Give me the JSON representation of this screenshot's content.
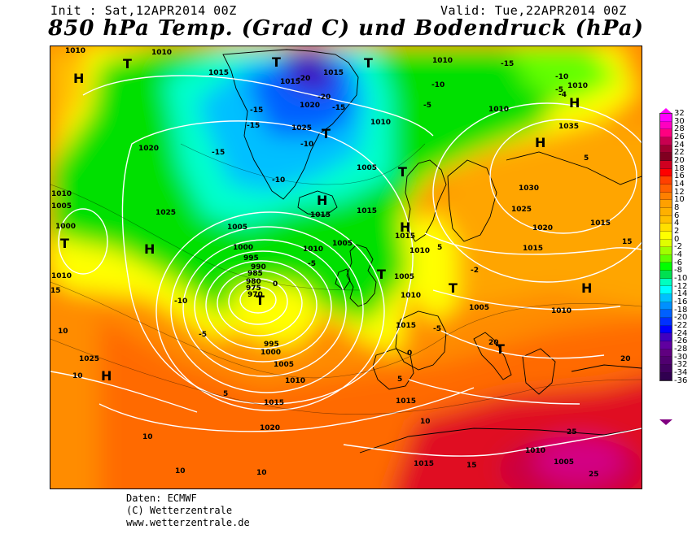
{
  "header": {
    "init_text": "Init : Sat,12APR2014 00Z",
    "valid_text": "Valid: Tue,22APR2014 00Z",
    "title": "850 hPa Temp. (Grad C) und Bodendruck (hPa)"
  },
  "credits": {
    "line1": "Daten: ECMWF",
    "line2": "(C) Wetterzentrale",
    "line3": "www.wetterzentrale.de"
  },
  "colors": {
    "deep_purple": "#800080",
    "purple": "#a000a0",
    "magenta": "#ff00ff",
    "pink": "#ff40a0",
    "red": "#e01020",
    "red_orange": "#f04010",
    "orange_dark": "#ff6a00",
    "orange": "#ff8c00",
    "light_orange": "#ffa500",
    "amber": "#ffc000",
    "yellow": "#ffff00",
    "yellow_green": "#c8ff00",
    "green_light": "#64ff00",
    "green": "#00e000",
    "cyan": "#00ffcc",
    "light_blue": "#00c0ff",
    "blue": "#0080ff",
    "dark_blue": "#0040ff",
    "coastline": "#000000",
    "isobar": "#ffffff"
  },
  "legend": {
    "ticks": [
      "32",
      "30",
      "28",
      "26",
      "24",
      "22",
      "20",
      "18",
      "16",
      "14",
      "12",
      "10",
      "8",
      "6",
      "4",
      "2",
      "0",
      "-2",
      "-4",
      "-6",
      "-8",
      "-10",
      "-12",
      "-14",
      "-16",
      "-18",
      "-20",
      "-22",
      "-24",
      "-26",
      "-28",
      "-30",
      "-32",
      "-34",
      "-36"
    ],
    "colors": [
      "#ff00ff",
      "#ff00c0",
      "#ff0080",
      "#c80050",
      "#a00030",
      "#800020",
      "#d00020",
      "#ff0000",
      "#ff4000",
      "#ff6000",
      "#ff8000",
      "#ffa000",
      "#ffb000",
      "#ffc000",
      "#ffe000",
      "#ffff00",
      "#e0ff00",
      "#a0ff00",
      "#60ff00",
      "#00ff00",
      "#00e050",
      "#00ffc0",
      "#00ffff",
      "#00c0ff",
      "#0090ff",
      "#0060ff",
      "#0030ff",
      "#0000ff",
      "#4000c0",
      "#6000a0",
      "#600080",
      "#500070",
      "#400060",
      "#300050"
    ]
  },
  "map": {
    "isobar_labels": [
      "1010",
      "1010",
      "1015",
      "1015",
      "1015",
      "1020",
      "1020",
      "1025",
      "1010",
      "1005",
      "1000",
      "1025",
      "1005",
      "1000",
      "995",
      "990",
      "985",
      "980",
      "975",
      "970",
      "1010",
      "1005",
      "995",
      "1000",
      "1005",
      "1010",
      "1015",
      "1020",
      "1010",
      "1005",
      "1010",
      "1015",
      "1010",
      "1015",
      "1010",
      "1005",
      "1015",
      "1010",
      "1010",
      "1035",
      "1030",
      "1025",
      "1020",
      "1015",
      "1015",
      "1010",
      "1015",
      "1025",
      "1015",
      "1010",
      "1005",
      "1015",
      "1010",
      "1005"
    ],
    "temp_labels": [
      "-15",
      "-15",
      "-15",
      "-10",
      "-20",
      "-20",
      "-15",
      "-10",
      "-10",
      "-10",
      "-5",
      "-5",
      "-5",
      "-10",
      "0",
      "-15",
      "-5",
      "5",
      "5",
      "5",
      "5",
      "10",
      "10",
      "10",
      "10",
      "10",
      "10",
      "15",
      "15",
      "15",
      "20",
      "20",
      "25",
      "25",
      "0",
      "-5",
      "-2",
      "-4"
    ],
    "pressure_centers": [
      "H",
      "H",
      "H",
      "H",
      "H",
      "H",
      "H",
      "H",
      "T",
      "T",
      "T",
      "T",
      "T",
      "T",
      "T",
      "T",
      "T",
      "T"
    ]
  }
}
